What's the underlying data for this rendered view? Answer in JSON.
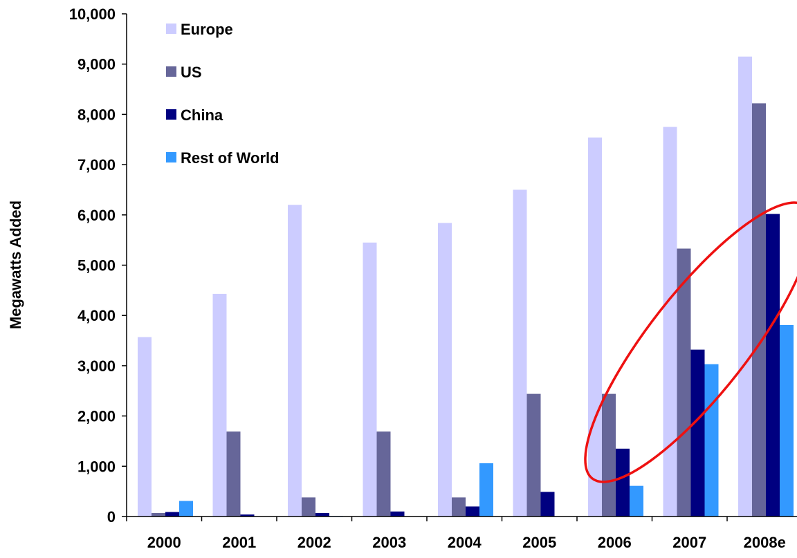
{
  "chart_data": {
    "type": "bar",
    "title": "",
    "xlabel": "",
    "ylabel": "Megawatts Added",
    "categories": [
      "2000",
      "2001",
      "2002",
      "2003",
      "2004",
      "2005",
      "2006",
      "2007",
      "2008e"
    ],
    "ylim": [
      0,
      10000
    ],
    "yticks": [
      0,
      1000,
      2000,
      3000,
      4000,
      5000,
      6000,
      7000,
      8000,
      9000,
      10000
    ],
    "ytick_labels": [
      "0",
      "1,000",
      "2,000",
      "3,000",
      "4,000",
      "5,000",
      "6,000",
      "7,000",
      "8,000",
      "9,000",
      "10,000"
    ],
    "grid": false,
    "legend_position": "top-left",
    "series": [
      {
        "name": "Europe",
        "color": "#ccccff",
        "values": [
          3570,
          4430,
          6200,
          5450,
          5840,
          6500,
          7540,
          7750,
          9150
        ]
      },
      {
        "name": "US",
        "color": "#666699",
        "values": [
          70,
          1690,
          380,
          1690,
          380,
          2440,
          2440,
          5330,
          8220
        ]
      },
      {
        "name": "China",
        "color": "#000080",
        "values": [
          90,
          40,
          70,
          100,
          200,
          490,
          1350,
          3320,
          6020
        ]
      },
      {
        "name": "Rest of World",
        "color": "#3399ff",
        "values": [
          310,
          0,
          10,
          0,
          1060,
          0,
          610,
          3030,
          3810
        ]
      }
    ],
    "annotations": [
      {
        "type": "ellipse",
        "color": "#ee1111",
        "description": "highlights growth of China and Rest of World from 2006 to 2008e"
      }
    ]
  }
}
